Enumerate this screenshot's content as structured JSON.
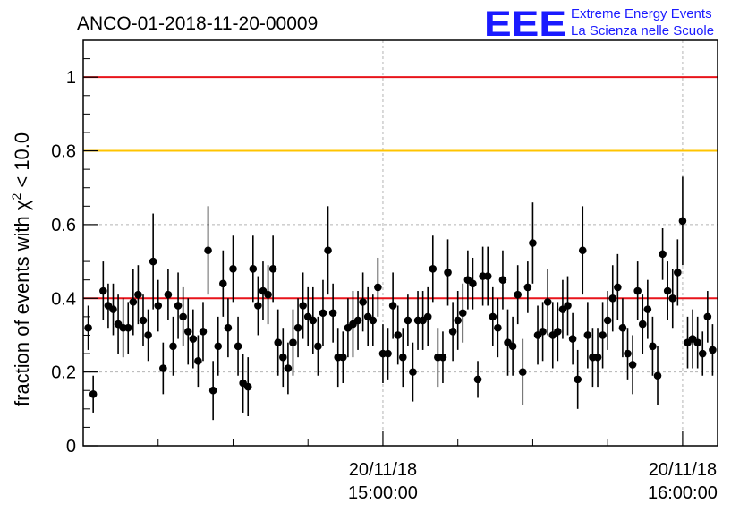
{
  "chart_data": {
    "type": "scatter",
    "title": "ANCO-01-2018-11-20-00009",
    "xlabel": "",
    "ylabel": "fraction of events with χ² < 10.0",
    "ylabel_parts": {
      "prefix": "fraction of events with ",
      "chi": "χ",
      "exp": "2",
      "suffix": " < 10.0"
    },
    "xlim": [
      0,
      127
    ],
    "ylim": [
      0,
      1.1
    ],
    "y_ticks": [
      0,
      0.2,
      0.4,
      0.6,
      0.8,
      1
    ],
    "y_tick_labels": [
      "0",
      "0.2",
      "0.4",
      "0.6",
      "0.8",
      "1"
    ],
    "x_ticks": [
      {
        "x": 60,
        "date": "20/11/18",
        "time": "15:00:00"
      },
      {
        "x": 120,
        "date": "20/11/18",
        "time": "16:00:00"
      }
    ],
    "x_minor_ticks": [
      15,
      30,
      45,
      75,
      90,
      105
    ],
    "grid": true,
    "reference_lines": [
      {
        "y": 1.0,
        "color": "#e8141b"
      },
      {
        "y": 0.8,
        "color": "#ffc400"
      },
      {
        "y": 0.4,
        "color": "#e8141b"
      }
    ],
    "series": [
      {
        "name": "fraction",
        "x": [
          1,
          2,
          4,
          5,
          6,
          7,
          8,
          9,
          10,
          11,
          12,
          13,
          14,
          15,
          16,
          17,
          18,
          19,
          20,
          21,
          22,
          23,
          24,
          25,
          26,
          27,
          28,
          29,
          30,
          31,
          32,
          33,
          34,
          35,
          36,
          37,
          38,
          39,
          40,
          41,
          42,
          43,
          44,
          45,
          46,
          47,
          48,
          49,
          50,
          51,
          52,
          53,
          54,
          55,
          56,
          57,
          58,
          59,
          60,
          61,
          62,
          63,
          64,
          65,
          66,
          67,
          68,
          69,
          70,
          71,
          72,
          73,
          74,
          75,
          76,
          77,
          78,
          79,
          80,
          81,
          82,
          83,
          84,
          85,
          86,
          87,
          88,
          89,
          90,
          91,
          92,
          93,
          94,
          95,
          96,
          97,
          98,
          99,
          100,
          101,
          102,
          103,
          104,
          105,
          106,
          107,
          108,
          109,
          110,
          111,
          112,
          113,
          114,
          115,
          116,
          117,
          118,
          119,
          120,
          121,
          122,
          123,
          124,
          125,
          126
        ],
        "y": [
          0.32,
          0.14,
          0.42,
          0.38,
          0.37,
          0.33,
          0.32,
          0.32,
          0.39,
          0.41,
          0.34,
          0.3,
          0.5,
          0.38,
          0.21,
          0.41,
          0.27,
          0.38,
          0.35,
          0.31,
          0.29,
          0.23,
          0.31,
          0.53,
          0.15,
          0.27,
          0.44,
          0.32,
          0.48,
          0.27,
          0.17,
          0.16,
          0.48,
          0.38,
          0.42,
          0.41,
          0.48,
          0.28,
          0.24,
          0.21,
          0.28,
          0.32,
          0.38,
          0.35,
          0.34,
          0.27,
          0.36,
          0.53,
          0.36,
          0.24,
          0.24,
          0.32,
          0.33,
          0.34,
          0.39,
          0.35,
          0.34,
          0.43,
          0.25,
          0.25,
          0.38,
          0.3,
          0.24,
          0.34,
          0.2,
          0.34,
          0.34,
          0.35,
          0.48,
          0.24,
          0.24,
          0.47,
          0.31,
          0.34,
          0.36,
          0.45,
          0.44,
          0.18,
          0.46,
          0.46,
          0.35,
          0.32,
          0.45,
          0.28,
          0.27,
          0.41,
          0.2,
          0.43,
          0.55,
          0.3,
          0.31,
          0.39,
          0.3,
          0.31,
          0.37,
          0.38,
          0.29,
          0.18,
          0.53,
          0.3,
          0.24,
          0.24,
          0.3,
          0.34,
          0.4,
          0.43,
          0.32,
          0.25,
          0.22,
          0.42,
          0.33,
          0.37,
          0.27,
          0.19,
          0.52,
          0.42,
          0.4,
          0.47,
          0.61,
          0.28,
          0.29,
          0.28,
          0.25,
          0.35,
          0.26
        ],
        "err": [
          0.06,
          0.05,
          0.08,
          0.06,
          0.07,
          0.08,
          0.08,
          0.07,
          0.09,
          0.08,
          0.07,
          0.07,
          0.13,
          0.07,
          0.07,
          0.07,
          0.08,
          0.09,
          0.08,
          0.09,
          0.08,
          0.07,
          0.08,
          0.12,
          0.08,
          0.08,
          0.09,
          0.08,
          0.09,
          0.08,
          0.08,
          0.08,
          0.09,
          0.08,
          0.08,
          0.08,
          0.09,
          0.09,
          0.08,
          0.07,
          0.09,
          0.08,
          0.09,
          0.08,
          0.09,
          0.08,
          0.09,
          0.12,
          0.08,
          0.08,
          0.07,
          0.08,
          0.09,
          0.08,
          0.08,
          0.08,
          0.07,
          0.08,
          0.08,
          0.07,
          0.09,
          0.08,
          0.08,
          0.07,
          0.08,
          0.08,
          0.08,
          0.08,
          0.09,
          0.08,
          0.07,
          0.09,
          0.08,
          0.08,
          0.08,
          0.08,
          0.07,
          0.05,
          0.08,
          0.08,
          0.08,
          0.08,
          0.08,
          0.09,
          0.08,
          0.08,
          0.09,
          0.07,
          0.11,
          0.08,
          0.08,
          0.09,
          0.09,
          0.08,
          0.08,
          0.08,
          0.07,
          0.08,
          0.12,
          0.09,
          0.08,
          0.08,
          0.09,
          0.08,
          0.09,
          0.09,
          0.08,
          0.07,
          0.08,
          0.08,
          0.08,
          0.08,
          0.08,
          0.08,
          0.07,
          0.08,
          0.08,
          0.09,
          0.12,
          0.07,
          0.08,
          0.07,
          0.06,
          0.07,
          0.07
        ]
      }
    ],
    "colors": {
      "frame": "#000000",
      "grid": "#b4b4b4",
      "point": "#000000",
      "logo": "#1a1aff"
    }
  },
  "logo": {
    "letters": "EEE",
    "line1": "Extreme Energy Events",
    "line2": "La Scienza nelle Scuole"
  }
}
